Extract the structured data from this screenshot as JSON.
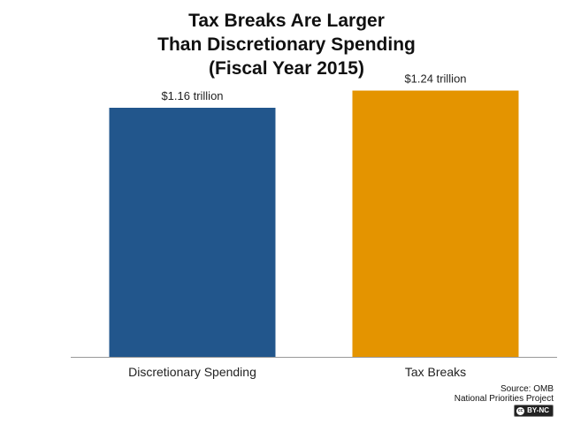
{
  "chart_data": {
    "type": "bar",
    "title_lines": [
      "Tax Breaks Are Larger",
      "Than Discretionary Spending",
      "(Fiscal Year 2015)"
    ],
    "categories": [
      "Discretionary Spending",
      "Tax Breaks"
    ],
    "values": [
      1.16,
      1.24
    ],
    "value_labels": [
      "$1.16 trillion",
      "$1.24 trillion"
    ],
    "colors": [
      "#22568C",
      "#E49400"
    ],
    "ylim": [
      0,
      1.3
    ],
    "grid": false
  },
  "footer": {
    "source": "Source: OMB",
    "organization": "National Priorities Project",
    "license": "BY-NC"
  }
}
